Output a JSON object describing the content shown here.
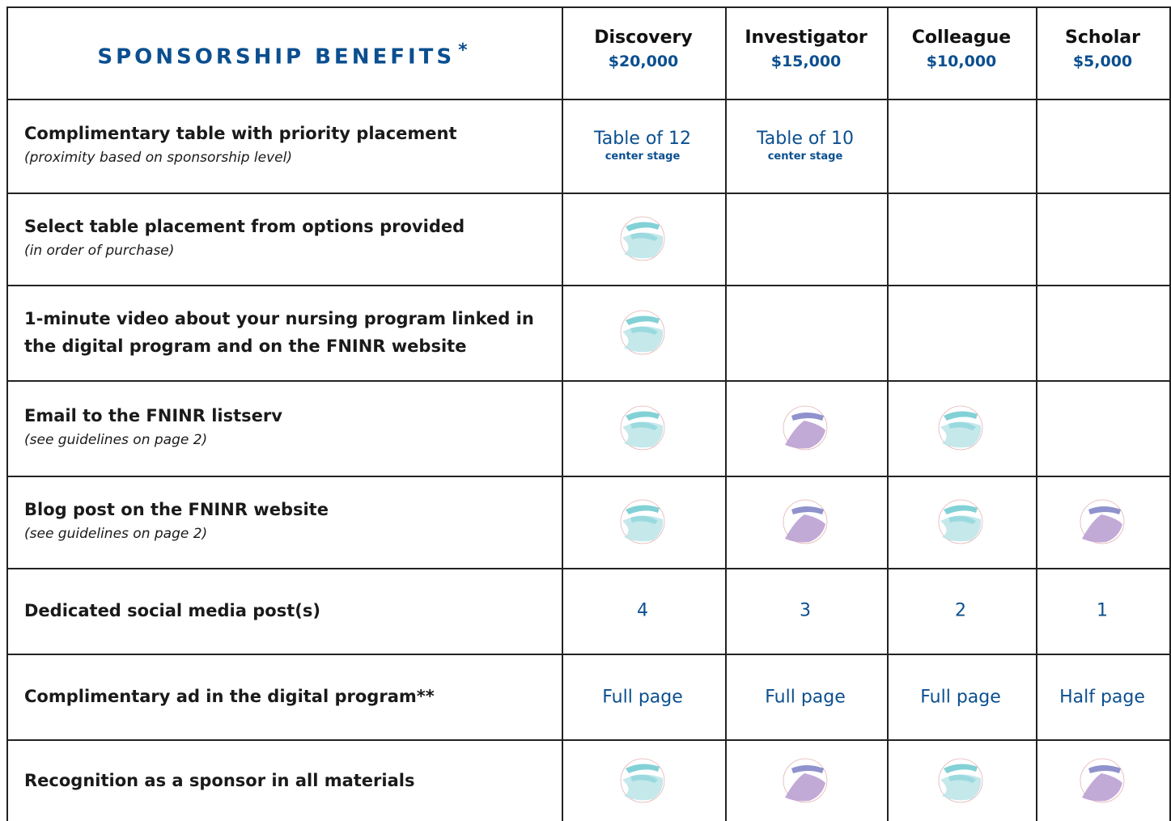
{
  "header": {
    "title": "SPONSORSHIP BENEFITS",
    "asterisk": "*",
    "levels": [
      {
        "name": "Discovery",
        "price": "$20,000"
      },
      {
        "name": "Investigator",
        "price": "$15,000"
      },
      {
        "name": "Colleague",
        "price": "$10,000"
      },
      {
        "name": "Scholar",
        "price": "$5,000"
      }
    ]
  },
  "rows": [
    {
      "title": "Complimentary table with priority placement",
      "note": "(proximity based on sponsorship level)",
      "cells": [
        {
          "text": "Table of 12",
          "sub": "center stage"
        },
        {
          "text": "Table of 10",
          "sub": "center stage"
        }
      ]
    },
    {
      "title": "Select table placement from options provided",
      "note": "(in order of purchase)"
    },
    {
      "title": "1-minute video about your nursing program linked in the digital program and on the FNINR website"
    },
    {
      "title": "Email to the FNINR listserv",
      "note": "(see guidelines on page 2)"
    },
    {
      "title": "Blog post on the FNINR website",
      "note": "(see guidelines on page 2)"
    },
    {
      "title": "Dedicated social media post(s)",
      "cells": [
        "4",
        "3",
        "2",
        "1"
      ]
    },
    {
      "title": "Complimentary ad in the digital program**",
      "cells": [
        "Full page",
        "Full page",
        "Full page",
        "Half page"
      ]
    },
    {
      "title": "Recognition as a sponsor in all materials"
    }
  ]
}
